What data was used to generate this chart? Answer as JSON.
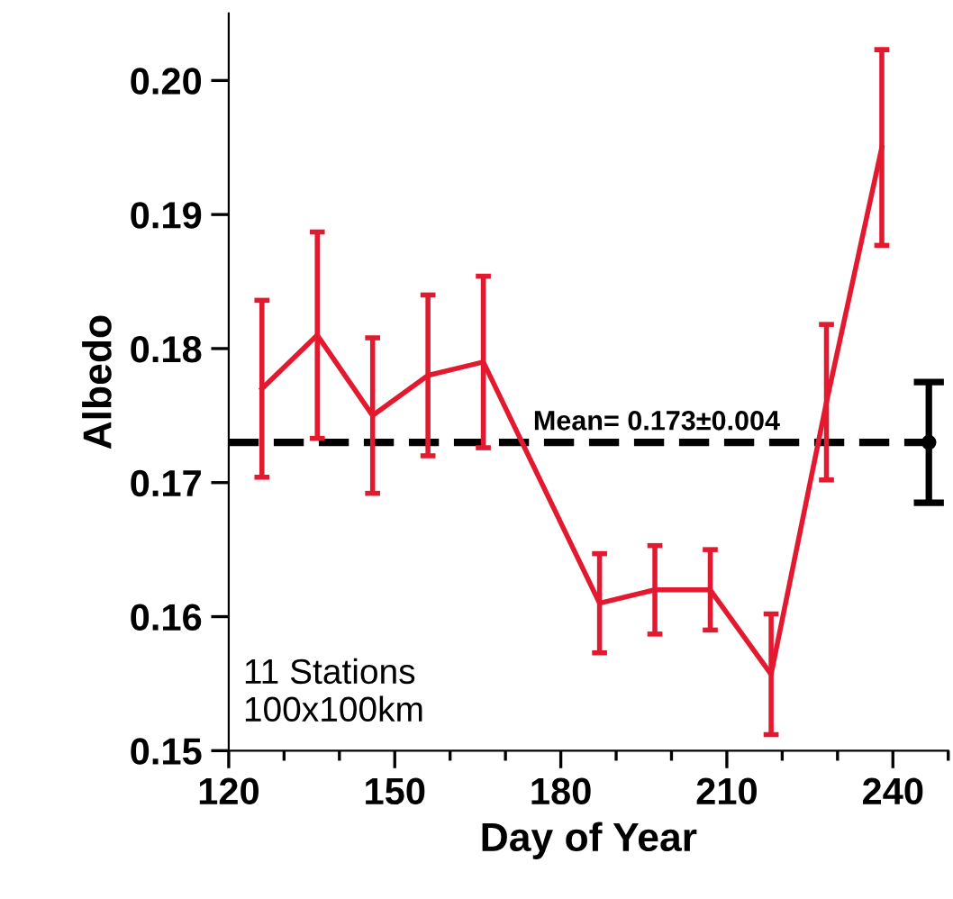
{
  "chart_data": {
    "type": "line",
    "xlabel": "Day of Year",
    "ylabel": "Albedo",
    "xlim": [
      120,
      250
    ],
    "xticks": [
      120,
      150,
      180,
      210,
      240
    ],
    "ylim": [
      0.15,
      0.205
    ],
    "yticks": [
      {
        "value": 0.15,
        "label": "0.15"
      },
      {
        "value": 0.16,
        "label": "0.16"
      },
      {
        "value": 0.17,
        "label": "0.17"
      },
      {
        "value": 0.18,
        "label": "0.18"
      },
      {
        "value": 0.19,
        "label": "0.19"
      },
      {
        "value": 0.2,
        "label": "0.20"
      }
    ],
    "series": [
      {
        "color": "#e31a2f",
        "x": [
          126,
          136,
          146,
          156,
          166,
          187,
          197,
          207,
          218,
          228,
          238
        ],
        "values": [
          0.177,
          0.181,
          0.175,
          0.178,
          0.179,
          0.161,
          0.162,
          0.162,
          0.1557,
          0.176,
          0.195
        ],
        "errors": [
          0.0066,
          0.0077,
          0.0058,
          0.006,
          0.0064,
          0.0037,
          0.0033,
          0.003,
          0.0045,
          0.0058,
          0.0073
        ]
      },
      {
        "type": "scatter",
        "marker": "circle",
        "color": "#000000",
        "x": [
          246.5
        ],
        "values": [
          0.173
        ],
        "errors": [
          0.0045
        ]
      }
    ],
    "ref_lines": [
      {
        "axis": "y",
        "value": 0.173,
        "label": "Mean= 0.173±0.004",
        "color": "#000000",
        "line_style": "dashed"
      }
    ],
    "annotations": [
      "11 Stations\n100x100km"
    ],
    "grid": false,
    "legend": false
  }
}
